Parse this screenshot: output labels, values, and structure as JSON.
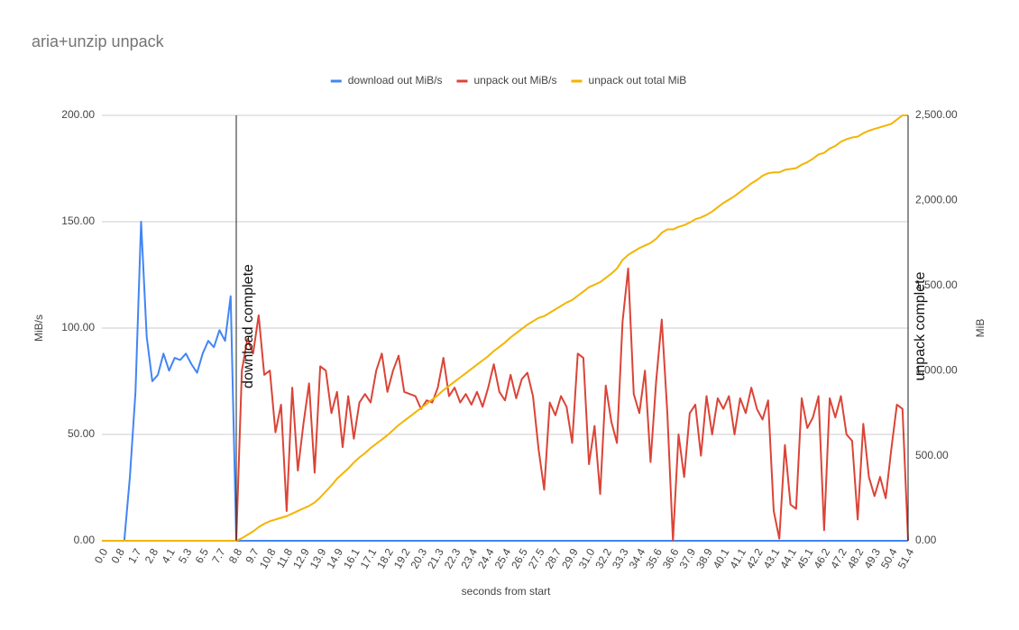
{
  "chart_data": {
    "type": "line",
    "title": "aria+unzip unpack",
    "x_label": "seconds from start",
    "y_label": "MiB/s",
    "y2_label": "MiB",
    "legend": "top",
    "grid": true,
    "ylim": [
      0,
      200
    ],
    "yticks": [
      {
        "value": 0,
        "label": "0.00"
      },
      {
        "value": 50,
        "label": "50.00"
      },
      {
        "value": 100,
        "label": "100.00"
      },
      {
        "value": 150,
        "label": "150.00"
      },
      {
        "value": 200,
        "label": "200.00"
      }
    ],
    "y2lim": [
      0,
      2500
    ],
    "y2ticks": [
      {
        "value": 0,
        "label": "0.00"
      },
      {
        "value": 500,
        "label": "500.00"
      },
      {
        "value": 1000,
        "label": "1,000.00"
      },
      {
        "value": 1500,
        "label": "1,500.00"
      },
      {
        "value": 2000,
        "label": "2,000.00"
      },
      {
        "value": 2500,
        "label": "2,500.00"
      }
    ],
    "annotations": [
      {
        "text": "download complete",
        "x": "8.8"
      },
      {
        "text": "unpack complete",
        "x": "51.4"
      }
    ],
    "categories": [
      "0.0",
      null,
      null,
      "0.8",
      null,
      null,
      "1.7",
      null,
      null,
      "2.8",
      null,
      null,
      "4.1",
      null,
      null,
      "5.3",
      null,
      null,
      "6.5",
      null,
      null,
      "7.7",
      null,
      null,
      "8.8",
      null,
      null,
      "9.7",
      null,
      null,
      "10.8",
      null,
      null,
      "11.8",
      null,
      null,
      "12.9",
      null,
      null,
      "13.9",
      null,
      null,
      "14.9",
      null,
      null,
      "16.1",
      null,
      null,
      "17.1",
      null,
      null,
      "18.2",
      null,
      null,
      "19.2",
      null,
      null,
      "20.3",
      null,
      null,
      "21.3",
      null,
      null,
      "22.3",
      null,
      null,
      "23.4",
      null,
      null,
      "24.4",
      null,
      null,
      "25.4",
      null,
      null,
      "26.5",
      null,
      null,
      "27.5",
      null,
      null,
      "28.7",
      null,
      null,
      "29.9",
      null,
      null,
      "31.0",
      null,
      null,
      "32.2",
      null,
      null,
      "33.3",
      null,
      null,
      "34.4",
      null,
      null,
      "35.6",
      null,
      null,
      "36.6",
      null,
      null,
      "37.9",
      null,
      null,
      "38.9",
      null,
      null,
      "40.1",
      null,
      null,
      "41.1",
      null,
      null,
      "42.2",
      null,
      null,
      "43.1",
      null,
      null,
      "44.1",
      null,
      null,
      "45.1",
      null,
      null,
      "46.2",
      null,
      null,
      "47.2",
      null,
      null,
      "48.2",
      null,
      null,
      "49.3",
      null,
      null,
      "50.4",
      null,
      null,
      "51.4"
    ],
    "series": [
      {
        "name": "download out MiB/s",
        "color": "#4285f4",
        "values": [
          0,
          0,
          0,
          0,
          0,
          30,
          70,
          150,
          96,
          75,
          78,
          88,
          80,
          86,
          85,
          88,
          83,
          79,
          88,
          94,
          91,
          99,
          94,
          115,
          0,
          0,
          0,
          0,
          0,
          0,
          0,
          0,
          0,
          0,
          0,
          0,
          0,
          0,
          0,
          0,
          0,
          0,
          0,
          0,
          0,
          0,
          0,
          0,
          0,
          0,
          0,
          0,
          0,
          0,
          0,
          0,
          0,
          0,
          0,
          0,
          0,
          0,
          0,
          0,
          0,
          0,
          0,
          0,
          0,
          0,
          0,
          0,
          0,
          0,
          0,
          0,
          0,
          0,
          0,
          0,
          0,
          0,
          0,
          0,
          0,
          0,
          0,
          0,
          0,
          0,
          0,
          0,
          0,
          0,
          0,
          0,
          0,
          0,
          0,
          0,
          0,
          0,
          0,
          0,
          0,
          0,
          0,
          0,
          0,
          0,
          0,
          0,
          0,
          0,
          0,
          0,
          0,
          0,
          0,
          0,
          0,
          0,
          0,
          0,
          0,
          0,
          0,
          0,
          0,
          0,
          0,
          0,
          0,
          0,
          0,
          0,
          0,
          0,
          0,
          0,
          0,
          0,
          0,
          0,
          0
        ]
      },
      {
        "name": "unpack out MiB/s",
        "color": "#db4437",
        "values": [
          0,
          0,
          0,
          0,
          0,
          0,
          0,
          0,
          0,
          0,
          0,
          0,
          0,
          0,
          0,
          0,
          0,
          0,
          0,
          0,
          0,
          0,
          0,
          0,
          0,
          80,
          95,
          88,
          106,
          78,
          80,
          51,
          64,
          14,
          72,
          33,
          55,
          74,
          32,
          82,
          80,
          60,
          70,
          44,
          68,
          48,
          65,
          69,
          65,
          80,
          88,
          70,
          80,
          87,
          70,
          69,
          68,
          62,
          66,
          65,
          72,
          86,
          68,
          72,
          65,
          69,
          64,
          70,
          63,
          72,
          83,
          70,
          66,
          78,
          67,
          76,
          79,
          68,
          43,
          24,
          65,
          59,
          68,
          63,
          46,
          88,
          86,
          36,
          54,
          22,
          73,
          56,
          46,
          103,
          128,
          69,
          60,
          80,
          37,
          75,
          104,
          60,
          0,
          50,
          30,
          60,
          64,
          40,
          68,
          50,
          67,
          62,
          68,
          50,
          67,
          60,
          72,
          62,
          57,
          66,
          14,
          1,
          45,
          17,
          15,
          67,
          53,
          58,
          68,
          5,
          67,
          58,
          68,
          50,
          47,
          10,
          55,
          30,
          21,
          30,
          20,
          43,
          64,
          62,
          0
        ]
      },
      {
        "name": "unpack out total MiB",
        "color": "#f4b400",
        "axis": "y2",
        "values": [
          0,
          0,
          0,
          0,
          0,
          0,
          0,
          0,
          0,
          0,
          0,
          0,
          0,
          0,
          0,
          0,
          0,
          0,
          0,
          0,
          0,
          0,
          0,
          0,
          0,
          15,
          35,
          55,
          80,
          100,
          115,
          125,
          135,
          145,
          160,
          175,
          190,
          205,
          225,
          255,
          290,
          325,
          365,
          395,
          425,
          460,
          490,
          515,
          545,
          570,
          595,
          620,
          650,
          680,
          705,
          730,
          755,
          780,
          805,
          830,
          855,
          885,
          910,
          935,
          960,
          985,
          1010,
          1035,
          1060,
          1085,
          1115,
          1140,
          1165,
          1195,
          1220,
          1245,
          1270,
          1290,
          1310,
          1320,
          1340,
          1360,
          1380,
          1400,
          1415,
          1440,
          1465,
          1490,
          1505,
          1520,
          1545,
          1570,
          1600,
          1650,
          1680,
          1700,
          1720,
          1735,
          1750,
          1775,
          1810,
          1830,
          1830,
          1845,
          1855,
          1870,
          1890,
          1900,
          1915,
          1935,
          1960,
          1985,
          2005,
          2025,
          2050,
          2075,
          2100,
          2120,
          2145,
          2160,
          2165,
          2165,
          2180,
          2185,
          2190,
          2210,
          2225,
          2245,
          2270,
          2280,
          2305,
          2320,
          2345,
          2360,
          2370,
          2375,
          2395,
          2410,
          2420,
          2430,
          2440,
          2450,
          2475,
          2500,
          2500
        ]
      }
    ]
  }
}
